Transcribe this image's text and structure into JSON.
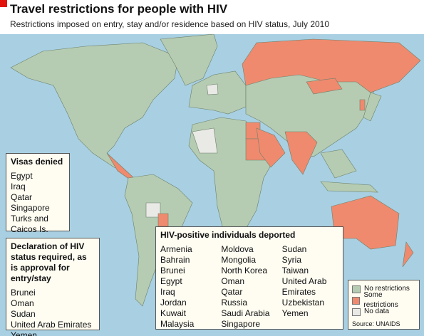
{
  "header": {
    "title": "Travel restrictions for people with HIV",
    "subtitle": "Restrictions imposed on entry, stay and/or residence based on HIV status, July 2010"
  },
  "visas_denied": {
    "title": "Visas denied",
    "items": [
      "Egypt",
      "Iraq",
      "Qatar",
      "Singapore",
      "Turks and Caicos Is."
    ]
  },
  "declaration": {
    "title": "Declaration of HIV status required, as is approval for entry/stay",
    "items": [
      "Brunei",
      "Oman",
      "Sudan",
      "United Arab Emirates",
      "Yemen"
    ]
  },
  "deported": {
    "title": "HIV-positive individuals deported",
    "columns": [
      [
        "Armenia",
        "Bahrain",
        "Brunei",
        "Egypt",
        "Iraq",
        "Jordan",
        "Kuwait",
        "Malaysia"
      ],
      [
        "Moldova",
        "Mongolia",
        "North Korea",
        "Oman",
        "Qatar",
        "Russia",
        "Saudi Arabia",
        "Singapore"
      ],
      [
        "Sudan",
        "Syria",
        "Taiwan",
        "United Arab Emirates",
        "Uzbekistan",
        "Yemen"
      ]
    ]
  },
  "legend": {
    "items": [
      {
        "label": "No restrictions",
        "color": "#b5ccb2"
      },
      {
        "label": "Some restrictions",
        "color": "#ef8a6e"
      },
      {
        "label": "No data",
        "color": "#e9e9e6"
      }
    ]
  },
  "source": "Source: UNAIDS"
}
